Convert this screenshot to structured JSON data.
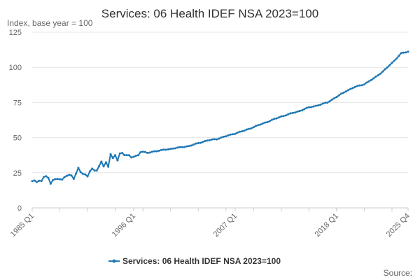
{
  "chart_data": {
    "type": "line",
    "title": "Services: 06 Health IDEF NSA 2023=100",
    "ylabel": "Index, base year = 100",
    "xlabel": "",
    "ylim": [
      0,
      125
    ],
    "yticks": [
      "0",
      "25",
      "50",
      "75",
      "100",
      "125"
    ],
    "ytick_values": [
      0,
      25,
      50,
      75,
      100,
      125
    ],
    "xticks": [
      {
        "label": "1985 Q1",
        "x": 1985.0
      },
      {
        "label": "1996 Q1",
        "x": 1996.0
      },
      {
        "label": "2007 Q1",
        "x": 2007.0
      },
      {
        "label": "2018 Q1",
        "x": 2018.0
      },
      {
        "label": "2025 Q4",
        "x": 2025.75
      }
    ],
    "xlim": [
      1985.0,
      2025.75
    ],
    "grid": true,
    "legend_position": "bottom",
    "color": "#1f78b4",
    "series": [
      {
        "name": "Services: 06 Health IDEF NSA 2023=100",
        "anchors": [
          [
            1985.0,
            19
          ],
          [
            1986.0,
            19
          ],
          [
            1986.25,
            22.5
          ],
          [
            1986.75,
            21.5
          ],
          [
            1987.0,
            17.5
          ],
          [
            1987.5,
            21
          ],
          [
            1988.0,
            20
          ],
          [
            1988.5,
            21.5
          ],
          [
            1989.0,
            24
          ],
          [
            1989.5,
            21
          ],
          [
            1990.0,
            28
          ],
          [
            1990.5,
            24
          ],
          [
            1991.0,
            23
          ],
          [
            1991.5,
            28
          ],
          [
            1992.0,
            26
          ],
          [
            1992.25,
            30
          ],
          [
            1992.5,
            33
          ],
          [
            1992.75,
            29
          ],
          [
            1993.0,
            33
          ],
          [
            1993.25,
            29
          ],
          [
            1993.5,
            38
          ],
          [
            1993.75,
            36
          ],
          [
            1994.0,
            37
          ],
          [
            1994.25,
            34
          ],
          [
            1994.5,
            39
          ],
          [
            1995.0,
            38
          ],
          [
            1995.5,
            37
          ],
          [
            1996.0,
            36
          ],
          [
            1996.5,
            38
          ],
          [
            1997.0,
            40
          ],
          [
            1997.5,
            39
          ],
          [
            1998.0,
            40
          ],
          [
            1999.0,
            41
          ],
          [
            2000.0,
            42
          ],
          [
            2001.0,
            43
          ],
          [
            2002.0,
            44
          ],
          [
            2003.0,
            46
          ],
          [
            2004.0,
            48
          ],
          [
            2005.0,
            49
          ],
          [
            2006.0,
            51
          ],
          [
            2007.0,
            53
          ],
          [
            2008.0,
            55
          ],
          [
            2009.0,
            57.5
          ],
          [
            2010.0,
            60
          ],
          [
            2011.0,
            62.5
          ],
          [
            2012.0,
            65
          ],
          [
            2013.0,
            67
          ],
          [
            2014.0,
            69
          ],
          [
            2015.0,
            71.5
          ],
          [
            2016.0,
            73
          ],
          [
            2017.0,
            75
          ],
          [
            2018.0,
            79
          ],
          [
            2019.0,
            83
          ],
          [
            2020.0,
            86
          ],
          [
            2021.0,
            88
          ],
          [
            2022.0,
            92
          ],
          [
            2023.0,
            97
          ],
          [
            2024.0,
            103
          ],
          [
            2025.0,
            110
          ],
          [
            2025.75,
            111
          ]
        ]
      }
    ],
    "source_label": "Source:"
  }
}
